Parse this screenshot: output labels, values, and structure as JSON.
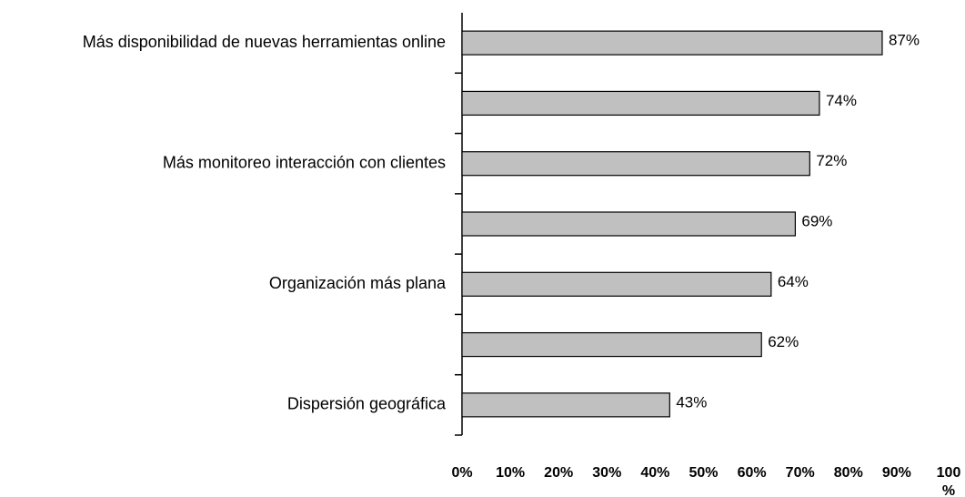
{
  "chart_data": {
    "type": "barh",
    "categories": [
      "Más disponibilidad de nuevas herramientas online",
      null,
      "Más monitoreo interacción con clientes",
      null,
      "Organización más plana",
      null,
      "Dispersión geográfica"
    ],
    "values": [
      87,
      74,
      72,
      69,
      64,
      62,
      43
    ],
    "value_labels": [
      "87%",
      "74%",
      "72%",
      "69%",
      "64%",
      "62%",
      "43%"
    ],
    "color": "#c0c0c0",
    "xlim": [
      0,
      100
    ],
    "xticks": [
      {
        "value": 0,
        "label": "0%"
      },
      {
        "value": 10,
        "label": "10%"
      },
      {
        "value": 20,
        "label": "20%"
      },
      {
        "value": 30,
        "label": "30%"
      },
      {
        "value": 40,
        "label": "40%"
      },
      {
        "value": 50,
        "label": "50%"
      },
      {
        "value": 60,
        "label": "60%"
      },
      {
        "value": 70,
        "label": "70%"
      },
      {
        "value": 80,
        "label": "80%"
      },
      {
        "value": 90,
        "label": "90%"
      },
      {
        "value": 100,
        "label": "100%"
      }
    ],
    "grid": false
  }
}
